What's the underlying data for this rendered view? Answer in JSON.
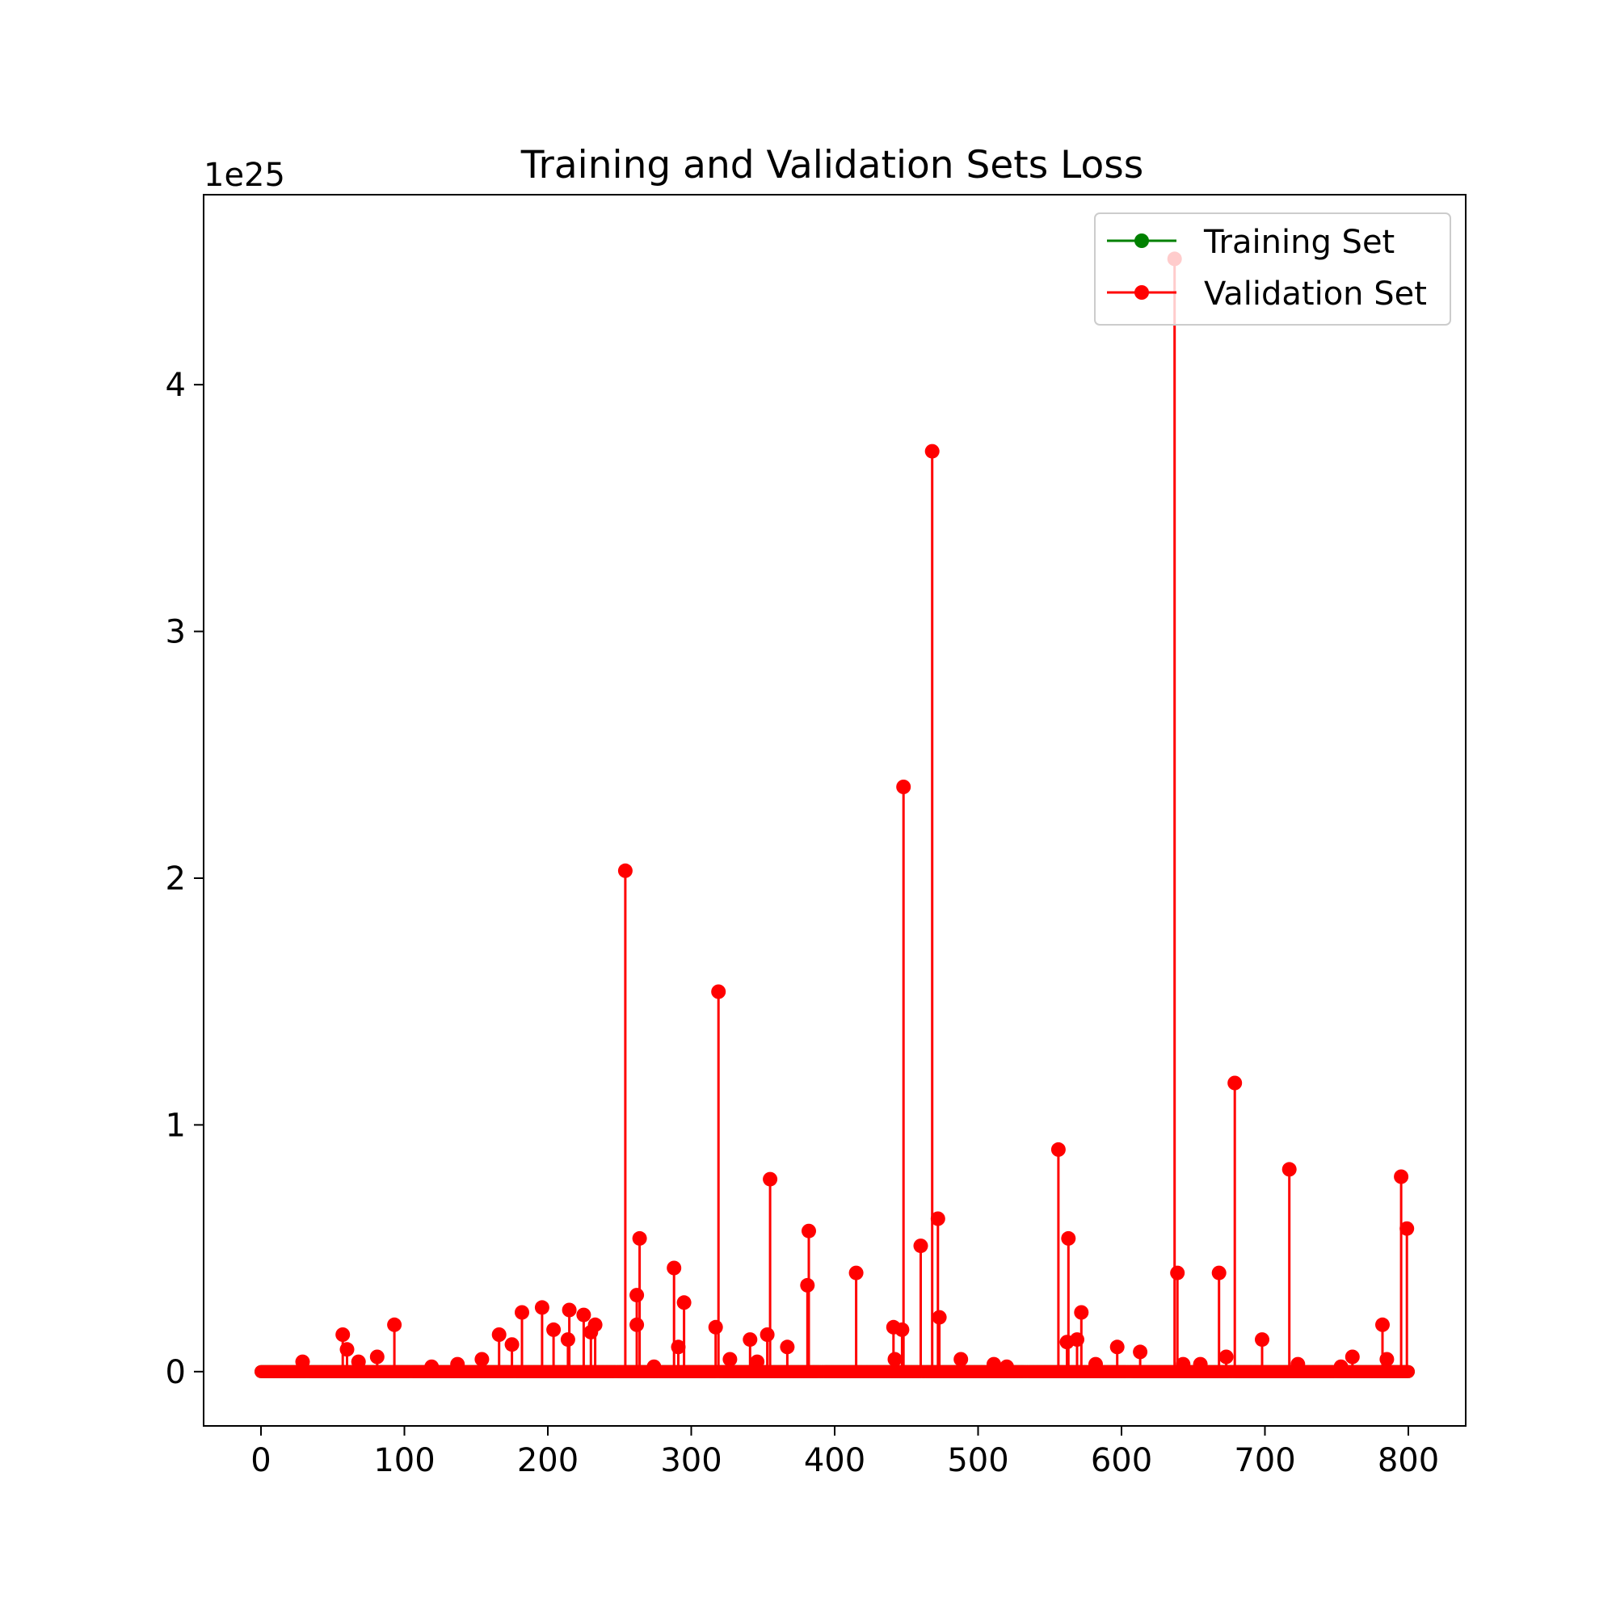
{
  "chart_data": {
    "type": "line",
    "title": "Training and Validation Sets Loss",
    "xlabel": "",
    "ylabel": "",
    "y_scale_label": "1e25",
    "xlim": [
      -40,
      840
    ],
    "ylim": [
      -0.22,
      4.77
    ],
    "x_ticks": [
      0,
      100,
      200,
      300,
      400,
      500,
      600,
      700,
      800
    ],
    "x_tick_labels": [
      "0",
      "100",
      "200",
      "300",
      "400",
      "500",
      "600",
      "700",
      "800"
    ],
    "y_ticks": [
      0,
      1,
      2,
      3,
      4
    ],
    "y_tick_labels": [
      "0",
      "1",
      "2",
      "3",
      "4"
    ],
    "grid": false,
    "legend_position": "top-right",
    "x_max": 800,
    "series": [
      {
        "name": "Training Set",
        "color": "#008000",
        "baseline": 0,
        "spikes": []
      },
      {
        "name": "Validation Set",
        "color": "#ff0000",
        "baseline": 0,
        "spikes": [
          [
            29,
            0.04
          ],
          [
            57,
            0.15
          ],
          [
            60,
            0.09
          ],
          [
            68,
            0.04
          ],
          [
            81,
            0.06
          ],
          [
            93,
            0.19
          ],
          [
            119,
            0.02
          ],
          [
            137,
            0.03
          ],
          [
            154,
            0.05
          ],
          [
            166,
            0.15
          ],
          [
            175,
            0.11
          ],
          [
            182,
            0.24
          ],
          [
            196,
            0.26
          ],
          [
            204,
            0.17
          ],
          [
            214,
            0.13
          ],
          [
            215,
            0.25
          ],
          [
            225,
            0.23
          ],
          [
            230,
            0.16
          ],
          [
            233,
            0.19
          ],
          [
            254,
            2.03
          ],
          [
            262,
            0.31
          ],
          [
            262,
            0.19
          ],
          [
            264,
            0.54
          ],
          [
            274,
            0.02
          ],
          [
            288,
            0.42
          ],
          [
            291,
            0.1
          ],
          [
            295,
            0.28
          ],
          [
            317,
            0.18
          ],
          [
            319,
            1.54
          ],
          [
            327,
            0.05
          ],
          [
            341,
            0.13
          ],
          [
            346,
            0.04
          ],
          [
            353,
            0.15
          ],
          [
            355,
            0.78
          ],
          [
            367,
            0.1
          ],
          [
            381,
            0.35
          ],
          [
            382,
            0.57
          ],
          [
            415,
            0.4
          ],
          [
            441,
            0.18
          ],
          [
            442,
            0.05
          ],
          [
            447,
            0.17
          ],
          [
            448,
            2.37
          ],
          [
            460,
            0.51
          ],
          [
            468,
            3.73
          ],
          [
            472,
            0.62
          ],
          [
            473,
            0.22
          ],
          [
            488,
            0.05
          ],
          [
            511,
            0.03
          ],
          [
            520,
            0.02
          ],
          [
            556,
            0.9
          ],
          [
            562,
            0.12
          ],
          [
            563,
            0.54
          ],
          [
            569,
            0.13
          ],
          [
            572,
            0.24
          ],
          [
            582,
            0.03
          ],
          [
            597,
            0.1
          ],
          [
            613,
            0.08
          ],
          [
            637,
            4.51
          ],
          [
            639,
            0.4
          ],
          [
            643,
            0.03
          ],
          [
            655,
            0.03
          ],
          [
            668,
            0.4
          ],
          [
            673,
            0.06
          ],
          [
            679,
            1.17
          ],
          [
            698,
            0.13
          ],
          [
            717,
            0.82
          ],
          [
            723,
            0.03
          ],
          [
            753,
            0.02
          ],
          [
            761,
            0.06
          ],
          [
            782,
            0.19
          ],
          [
            785,
            0.05
          ],
          [
            795,
            0.79
          ],
          [
            799,
            0.58
          ]
        ]
      }
    ]
  }
}
